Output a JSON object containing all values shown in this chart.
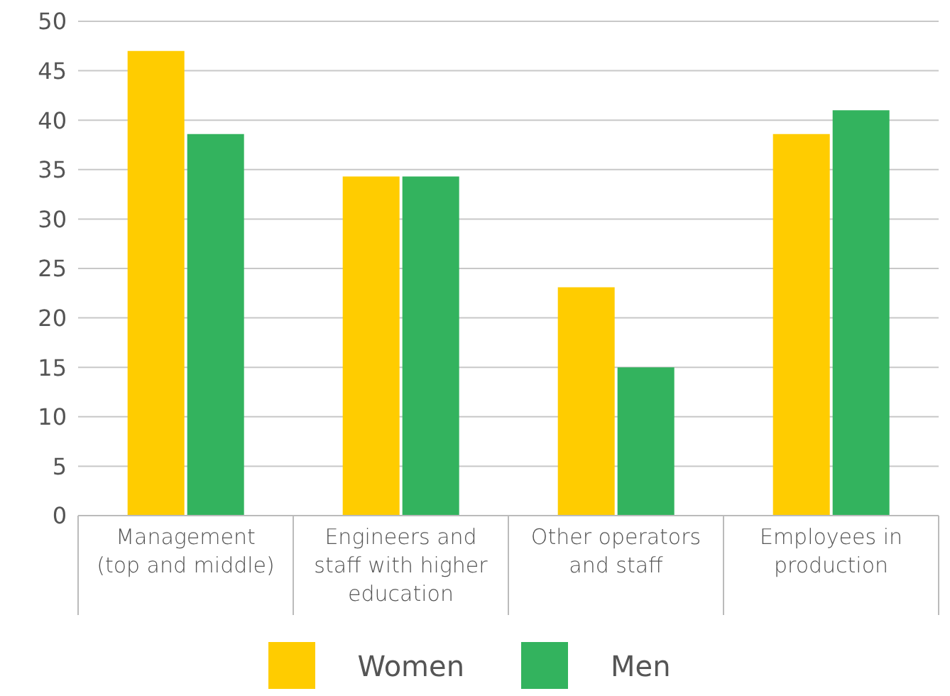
{
  "chart_data": {
    "type": "bar",
    "categories": [
      "Management (top and middle)",
      "Engineers and staff with higher education",
      "Other operators and staff",
      "Employees in production"
    ],
    "series": [
      {
        "name": "Women",
        "color": "#ffcc00",
        "values": [
          47,
          34.3,
          23.1,
          38.6
        ]
      },
      {
        "name": "Men",
        "color": "#33b35e",
        "values": [
          38.6,
          34.3,
          15,
          41
        ]
      }
    ],
    "ylim": [
      0,
      50
    ],
    "yticks": [
      0,
      5,
      10,
      15,
      20,
      25,
      30,
      35,
      40,
      45,
      50
    ],
    "grid": "y",
    "legend": "bottom"
  }
}
